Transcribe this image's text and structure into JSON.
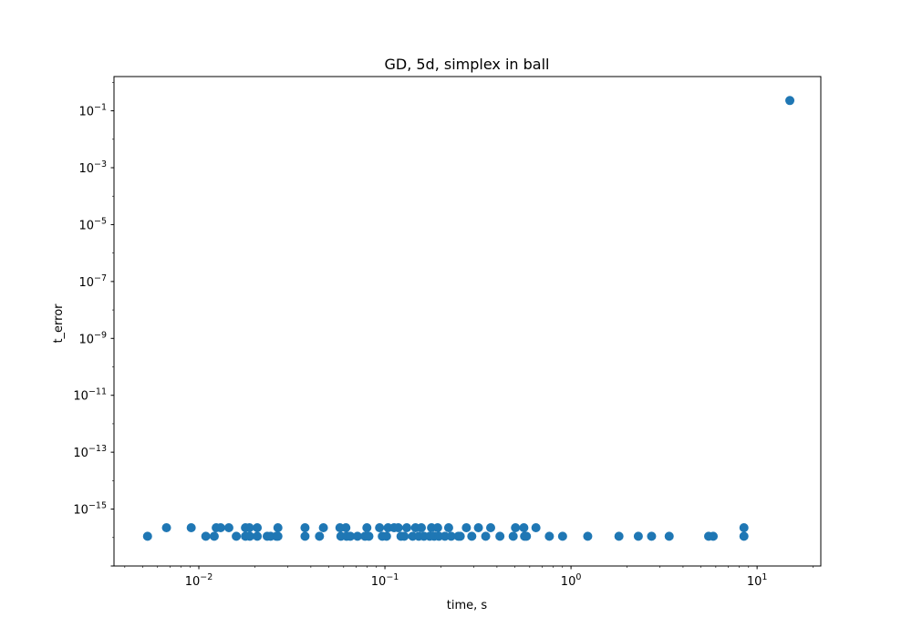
{
  "chart_data": {
    "type": "scatter",
    "title": "GD, 5d, simplex in ball",
    "xlabel": "time, s",
    "ylabel": "t_error",
    "xscale": "log",
    "yscale": "log",
    "xlim": [
      0.0035,
      22
    ],
    "ylim": [
      1e-17,
      1.6
    ],
    "x_ticks": [
      {
        "value": 0.01,
        "label": "10",
        "exp": "−2"
      },
      {
        "value": 0.1,
        "label": "10",
        "exp": "−1"
      },
      {
        "value": 1,
        "label": "10",
        "exp": "0"
      },
      {
        "value": 10,
        "label": "10",
        "exp": "1"
      }
    ],
    "y_ticks": [
      {
        "value": 0.1,
        "label": "10",
        "exp": "−1"
      },
      {
        "value": 0.001,
        "label": "10",
        "exp": "−3"
      },
      {
        "value": 1e-05,
        "label": "10",
        "exp": "−5"
      },
      {
        "value": 1e-07,
        "label": "10",
        "exp": "−7"
      },
      {
        "value": 1e-09,
        "label": "10",
        "exp": "−9"
      },
      {
        "value": 1e-11,
        "label": "10",
        "exp": "−11"
      },
      {
        "value": 1e-13,
        "label": "10",
        "exp": "−13"
      },
      {
        "value": 1e-15,
        "label": "10",
        "exp": "−15"
      }
    ],
    "grid": false,
    "marker_color": "#1f77b4",
    "series": [
      {
        "points": [
          [
            0.0053,
            1.11e-16
          ],
          [
            0.0067,
            2.22e-16
          ],
          [
            0.0091,
            2.22e-16
          ],
          [
            0.0109,
            1.11e-16
          ],
          [
            0.0121,
            1.11e-16
          ],
          [
            0.0124,
            2.22e-16
          ],
          [
            0.0131,
            2.22e-16
          ],
          [
            0.0145,
            2.22e-16
          ],
          [
            0.0159,
            1.11e-16
          ],
          [
            0.0178,
            2.22e-16
          ],
          [
            0.0178,
            1.11e-16
          ],
          [
            0.0187,
            2.22e-16
          ],
          [
            0.0188,
            1.11e-16
          ],
          [
            0.0206,
            2.22e-16
          ],
          [
            0.0206,
            1.11e-16
          ],
          [
            0.0233,
            1.11e-16
          ],
          [
            0.0243,
            1.11e-16
          ],
          [
            0.0261,
            1.11e-16
          ],
          [
            0.0266,
            2.22e-16
          ],
          [
            0.0266,
            1.11e-16
          ],
          [
            0.0372,
            2.22e-16
          ],
          [
            0.0372,
            1.11e-16
          ],
          [
            0.0445,
            1.11e-16
          ],
          [
            0.0467,
            2.22e-16
          ],
          [
            0.0573,
            2.22e-16
          ],
          [
            0.058,
            1.11e-16
          ],
          [
            0.0617,
            2.22e-16
          ],
          [
            0.0622,
            1.11e-16
          ],
          [
            0.0652,
            1.11e-16
          ],
          [
            0.0712,
            1.11e-16
          ],
          [
            0.0781,
            1.11e-16
          ],
          [
            0.08,
            2.22e-16
          ],
          [
            0.082,
            1.11e-16
          ],
          [
            0.0936,
            2.22e-16
          ],
          [
            0.0968,
            1.11e-16
          ],
          [
            0.102,
            1.11e-16
          ],
          [
            0.104,
            2.22e-16
          ],
          [
            0.112,
            2.22e-16
          ],
          [
            0.118,
            2.22e-16
          ],
          [
            0.122,
            1.11e-16
          ],
          [
            0.127,
            1.11e-16
          ],
          [
            0.131,
            2.22e-16
          ],
          [
            0.141,
            1.11e-16
          ],
          [
            0.146,
            2.22e-16
          ],
          [
            0.152,
            1.11e-16
          ],
          [
            0.157,
            2.22e-16
          ],
          [
            0.162,
            1.11e-16
          ],
          [
            0.174,
            1.11e-16
          ],
          [
            0.178,
            2.22e-16
          ],
          [
            0.184,
            1.11e-16
          ],
          [
            0.192,
            2.22e-16
          ],
          [
            0.195,
            1.11e-16
          ],
          [
            0.21,
            1.11e-16
          ],
          [
            0.22,
            2.22e-16
          ],
          [
            0.227,
            1.11e-16
          ],
          [
            0.248,
            1.11e-16
          ],
          [
            0.254,
            1.11e-16
          ],
          [
            0.274,
            2.22e-16
          ],
          [
            0.293,
            1.11e-16
          ],
          [
            0.318,
            2.22e-16
          ],
          [
            0.348,
            1.11e-16
          ],
          [
            0.37,
            2.22e-16
          ],
          [
            0.415,
            1.11e-16
          ],
          [
            0.489,
            1.11e-16
          ],
          [
            0.503,
            2.22e-16
          ],
          [
            0.558,
            2.22e-16
          ],
          [
            0.563,
            1.11e-16
          ],
          [
            0.576,
            1.11e-16
          ],
          [
            0.648,
            2.22e-16
          ],
          [
            0.765,
            1.11e-16
          ],
          [
            0.901,
            1.11e-16
          ],
          [
            1.23,
            1.11e-16
          ],
          [
            1.81,
            1.11e-16
          ],
          [
            2.3,
            1.11e-16
          ],
          [
            2.71,
            1.11e-16
          ],
          [
            3.37,
            1.11e-16
          ],
          [
            5.49,
            1.11e-16
          ],
          [
            5.81,
            1.11e-16
          ],
          [
            8.5,
            2.22e-16
          ],
          [
            8.5,
            1.11e-16
          ],
          [
            15.0,
            0.23
          ]
        ]
      }
    ]
  }
}
